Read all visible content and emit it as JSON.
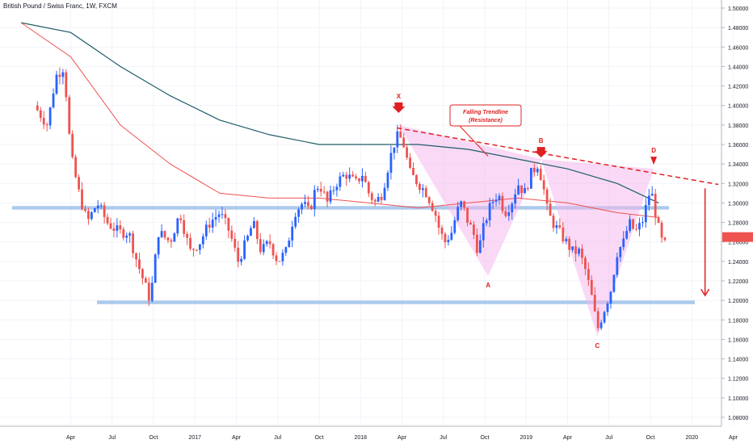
{
  "title": "British Pound / Swiss Franc, 1W, FXCM",
  "chart_data": {
    "type": "candlestick",
    "symbol": "British Pound / Swiss Franc",
    "interval": "1W",
    "source": "FXCM",
    "y_axis": {
      "position": "right",
      "ylim": [
        1.07,
        1.505
      ],
      "ticks": [
        "1.50000",
        "1.48000",
        "1.46000",
        "1.44000",
        "1.42000",
        "1.40000",
        "1.38000",
        "1.36000",
        "1.34000",
        "1.32000",
        "1.30000",
        "1.28000",
        "1.26000",
        "1.24000",
        "1.22000",
        "1.20000",
        "1.18000",
        "1.16000",
        "1.14000",
        "1.12000",
        "1.10000",
        "1.08000"
      ]
    },
    "x_axis": {
      "ticks": [
        {
          "label": "Apr",
          "t": 0.3
        },
        {
          "label": "Jul",
          "t": 0.55
        },
        {
          "label": "Oct",
          "t": 0.8
        },
        {
          "label": "2017",
          "t": 1.05
        },
        {
          "label": "Apr",
          "t": 1.3
        },
        {
          "label": "Jul",
          "t": 1.55
        },
        {
          "label": "Oct",
          "t": 1.8
        },
        {
          "label": "2018",
          "t": 2.05
        },
        {
          "label": "Apr",
          "t": 2.3
        },
        {
          "label": "Jul",
          "t": 2.55
        },
        {
          "label": "Oct",
          "t": 2.8
        },
        {
          "label": "2019",
          "t": 3.05
        },
        {
          "label": "Apr",
          "t": 3.3
        },
        {
          "label": "Jul",
          "t": 3.55
        },
        {
          "label": "Oct",
          "t": 3.8
        },
        {
          "label": "2020",
          "t": 4.05
        },
        {
          "label": "Apr",
          "t": 4.3
        }
      ]
    },
    "anchors": [
      [
        0.08,
        1.4
      ],
      [
        0.16,
        1.38
      ],
      [
        0.21,
        1.43
      ],
      [
        0.26,
        1.44
      ],
      [
        0.3,
        1.35
      ],
      [
        0.35,
        1.31
      ],
      [
        0.4,
        1.28
      ],
      [
        0.46,
        1.3
      ],
      [
        0.52,
        1.28
      ],
      [
        0.59,
        1.27
      ],
      [
        0.65,
        1.27
      ],
      [
        0.7,
        1.24
      ],
      [
        0.74,
        1.22
      ],
      [
        0.78,
        1.2
      ],
      [
        0.83,
        1.27
      ],
      [
        0.9,
        1.26
      ],
      [
        0.96,
        1.29
      ],
      [
        1.02,
        1.25
      ],
      [
        1.08,
        1.26
      ],
      [
        1.14,
        1.28
      ],
      [
        1.2,
        1.29
      ],
      [
        1.26,
        1.27
      ],
      [
        1.31,
        1.24
      ],
      [
        1.36,
        1.26
      ],
      [
        1.4,
        1.28
      ],
      [
        1.45,
        1.25
      ],
      [
        1.5,
        1.26
      ],
      [
        1.55,
        1.24
      ],
      [
        1.6,
        1.25
      ],
      [
        1.65,
        1.29
      ],
      [
        1.7,
        1.3
      ],
      [
        1.74,
        1.29
      ],
      [
        1.77,
        1.31
      ],
      [
        1.8,
        1.32
      ],
      [
        1.85,
        1.3
      ],
      [
        1.9,
        1.32
      ],
      [
        1.96,
        1.33
      ],
      [
        2.02,
        1.32
      ],
      [
        2.06,
        1.33
      ],
      [
        2.1,
        1.31
      ],
      [
        2.14,
        1.3
      ],
      [
        2.18,
        1.31
      ],
      [
        2.22,
        1.34
      ],
      [
        2.25,
        1.36
      ],
      [
        2.28,
        1.37
      ],
      [
        2.31,
        1.36
      ],
      [
        2.35,
        1.33
      ],
      [
        2.4,
        1.32
      ],
      [
        2.45,
        1.31
      ],
      [
        2.5,
        1.29
      ],
      [
        2.53,
        1.27
      ],
      [
        2.56,
        1.26
      ],
      [
        2.6,
        1.27
      ],
      [
        2.63,
        1.29
      ],
      [
        2.66,
        1.3
      ],
      [
        2.7,
        1.28
      ],
      [
        2.73,
        1.27
      ],
      [
        2.76,
        1.25
      ],
      [
        2.8,
        1.28
      ],
      [
        2.84,
        1.3
      ],
      [
        2.88,
        1.31
      ],
      [
        2.92,
        1.29
      ],
      [
        2.96,
        1.3
      ],
      [
        3.0,
        1.32
      ],
      [
        3.04,
        1.31
      ],
      [
        3.08,
        1.33
      ],
      [
        3.12,
        1.34
      ],
      [
        3.15,
        1.32
      ],
      [
        3.18,
        1.29
      ],
      [
        3.21,
        1.28
      ],
      [
        3.25,
        1.27
      ],
      [
        3.29,
        1.26
      ],
      [
        3.33,
        1.25
      ],
      [
        3.37,
        1.25
      ],
      [
        3.41,
        1.23
      ],
      [
        3.45,
        1.2
      ],
      [
        3.48,
        1.17
      ],
      [
        3.52,
        1.19
      ],
      [
        3.56,
        1.21
      ],
      [
        3.6,
        1.25
      ],
      [
        3.64,
        1.26
      ],
      [
        3.67,
        1.28
      ],
      [
        3.71,
        1.27
      ],
      [
        3.75,
        1.28
      ],
      [
        3.78,
        1.3
      ],
      [
        3.8,
        1.315
      ],
      [
        3.82,
        1.3
      ],
      [
        3.84,
        1.28
      ],
      [
        3.87,
        1.26
      ],
      [
        3.9,
        1.255
      ]
    ],
    "ma_dark": [
      [
        0.0,
        1.485
      ],
      [
        0.3,
        1.475
      ],
      [
        0.6,
        1.44
      ],
      [
        0.9,
        1.41
      ],
      [
        1.2,
        1.385
      ],
      [
        1.5,
        1.37
      ],
      [
        1.8,
        1.36
      ],
      [
        2.1,
        1.36
      ],
      [
        2.4,
        1.36
      ],
      [
        2.7,
        1.355
      ],
      [
        3.0,
        1.345
      ],
      [
        3.3,
        1.335
      ],
      [
        3.6,
        1.32
      ],
      [
        3.85,
        1.3
      ]
    ],
    "ma_red": [
      [
        0.0,
        1.485
      ],
      [
        0.3,
        1.45
      ],
      [
        0.6,
        1.38
      ],
      [
        0.9,
        1.34
      ],
      [
        1.2,
        1.31
      ],
      [
        1.5,
        1.305
      ],
      [
        1.8,
        1.305
      ],
      [
        2.1,
        1.3
      ],
      [
        2.4,
        1.295
      ],
      [
        2.7,
        1.3
      ],
      [
        3.0,
        1.305
      ],
      [
        3.3,
        1.3
      ],
      [
        3.6,
        1.29
      ],
      [
        3.85,
        1.285
      ]
    ],
    "support_levels": [
      1.295,
      1.198
    ],
    "trendline": [
      [
        2.27,
        1.377
      ],
      [
        4.21,
        1.319
      ]
    ],
    "pattern": {
      "name": "XABCD",
      "points": [
        {
          "label": "X",
          "t": 2.28,
          "y": 1.38
        },
        {
          "label": "A",
          "t": 2.82,
          "y": 1.225
        },
        {
          "label": "B",
          "t": 3.14,
          "y": 1.345
        },
        {
          "label": "C",
          "t": 3.48,
          "y": 1.163
        },
        {
          "label": "D",
          "t": 3.82,
          "y": 1.335
        }
      ]
    },
    "annotation": {
      "text_line1": "Falling Trendline",
      "text_line2": "(Resistance)"
    },
    "target_arrow": {
      "t": 4.13,
      "from": 1.315,
      "to": 1.205
    },
    "last_price": 1.265,
    "colors": {
      "up": "#2962ff",
      "down": "#ef5350",
      "ma_dark": "#1f5c68",
      "ma_red": "#ef5350",
      "support": "#90b8e4",
      "pattern_fill": "#f3b4ec",
      "annotation": "#e02020"
    }
  }
}
